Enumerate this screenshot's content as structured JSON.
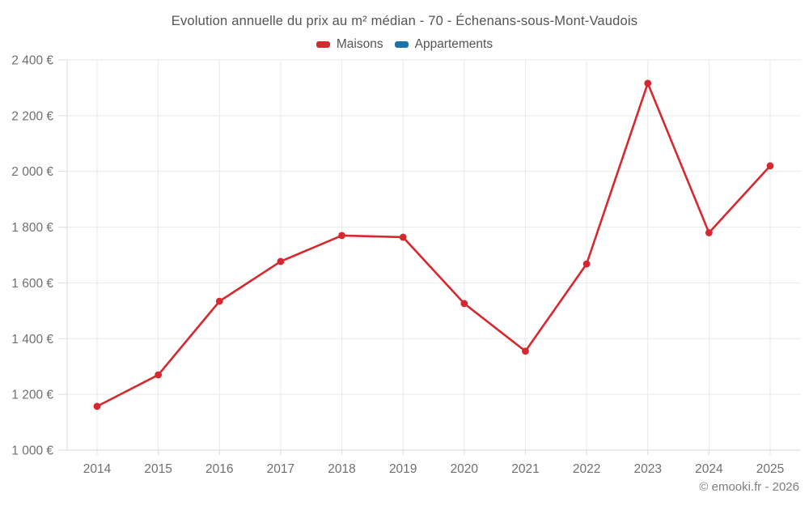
{
  "chart_data": {
    "type": "line",
    "title": "Evolution annuelle du prix au m² médian - 70 - Échenans-sous-Mont-Vaudois",
    "categories": [
      "2014",
      "2015",
      "2016",
      "2017",
      "2018",
      "2019",
      "2020",
      "2021",
      "2022",
      "2023",
      "2024",
      "2025"
    ],
    "series": [
      {
        "name": "Maisons",
        "color": "#d7282f",
        "values": [
          1157,
          1270,
          1534,
          1677,
          1770,
          1764,
          1526,
          1355,
          1668,
          2316,
          1780,
          2020
        ]
      },
      {
        "name": "Appartements",
        "color": "#1b73a8",
        "values": []
      }
    ],
    "xlabel": "",
    "ylabel": "",
    "y_axis": {
      "min": 1000,
      "max": 2400,
      "step": 200,
      "tick_values": [
        1000,
        1200,
        1400,
        1600,
        1800,
        2000,
        2200,
        2400
      ],
      "tick_labels": [
        "1 000 €",
        "1 200 €",
        "1 400 €",
        "1 600 €",
        "1 800 €",
        "2 000 €",
        "2 200 €",
        "2 400 €"
      ]
    },
    "grid": true,
    "legend_position": "top",
    "attribution": "© emooki.fr - 2026",
    "colors": {
      "grid_line": "#e9e9e9",
      "axis_line": "#d9d9d9",
      "tick_line": "#dcdcdc",
      "axis_label_text": "#6f6f6f",
      "title_text": "#545454",
      "attribution_text": "#7d7d7d",
      "background": "#ffffff"
    }
  }
}
